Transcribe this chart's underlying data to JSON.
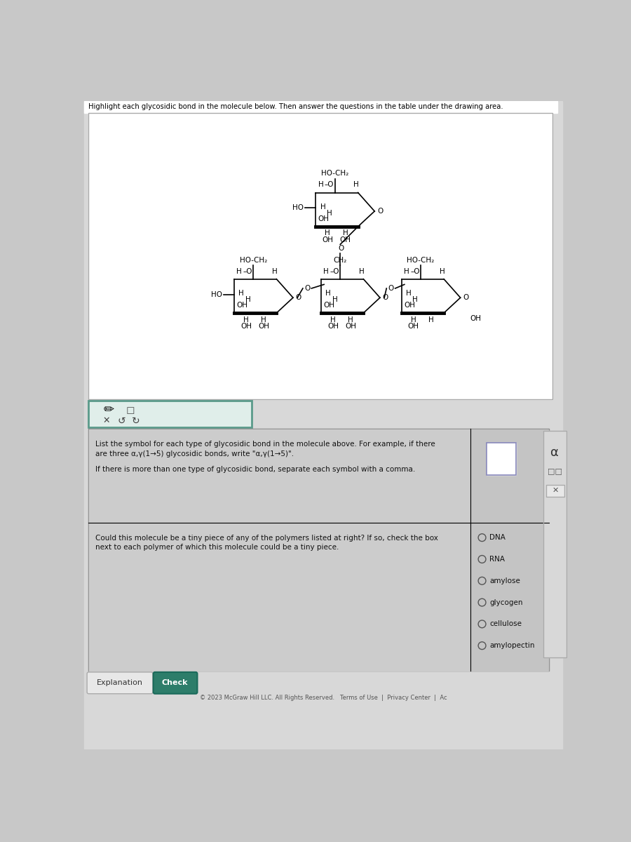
{
  "title": "Highlight each glycosidic bond in the molecule below. Then answer the questions in the table under the drawing area.",
  "bg_outer": "#c8c8c8",
  "bg_page": "#d4d4d4",
  "bg_white_panel": "#ffffff",
  "bg_drawing": "#f0f0f0",
  "bg_toolbar": "#e0eeea",
  "bg_table": "#cccccc",
  "bg_table_cell": "#c8c8c8",
  "bg_ans_cell": "#c0c0c0",
  "toolbar_border": "#5a9a8a",
  "check_btn_color": "#2d7d6a",
  "footer_text": "© 2023 McGraw Hill LLC. All Rights Reserved.   Terms of Use  |  Privacy Center  |  Ac",
  "q1_text_line1": "List the symbol for each type of glycosidic bond in the molecule above. For example, if there",
  "q1_text_line2": "are three α,γ(1→5) glycosidic bonds, write \"α,γ(1→5)\".",
  "q1_text_line3": "",
  "q1_text_line4": "If there is more than one type of glycosidic bond, separate each symbol with a comma.",
  "q2_text_line1": "Could this molecule be a tiny piece of any of the polymers listed at right? If so, check the box",
  "q2_text_line2": "next to each polymer of which this molecule could be a tiny piece.",
  "polymer_options": [
    "DNA",
    "RNA",
    "amylose",
    "glycogen",
    "cellulose",
    "amylopectin"
  ],
  "sidebar_bg": "#d8d8d8",
  "sidebar_border": "#aaaaaa"
}
